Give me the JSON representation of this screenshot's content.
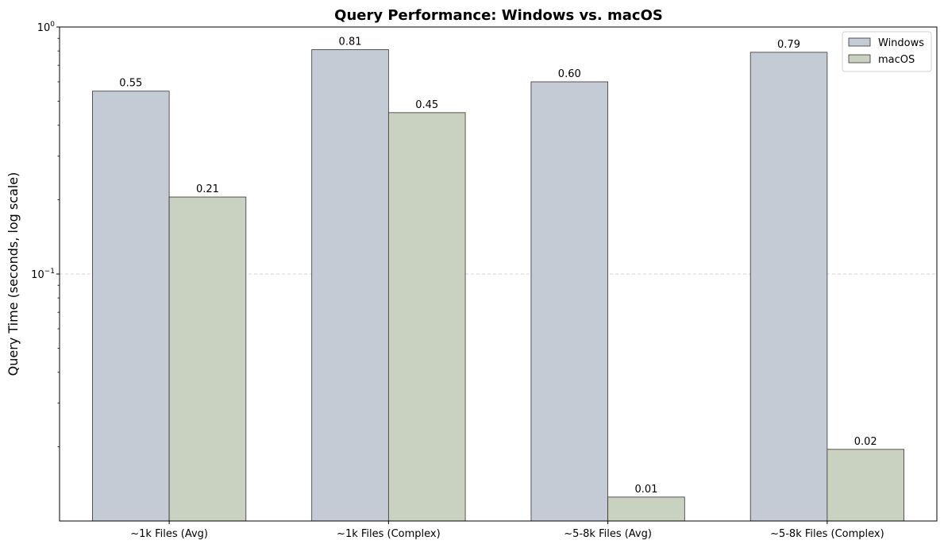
{
  "chart_data": {
    "type": "bar",
    "title": "Query Performance: Windows vs. macOS",
    "xlabel": "",
    "ylabel": "Query Time (seconds, log scale)",
    "yscale": "log",
    "ylim": [
      0.01,
      1
    ],
    "yticks": [
      {
        "value": 1,
        "base": "10",
        "exp": "0"
      },
      {
        "value": 0.1,
        "base": "10",
        "exp": "−1"
      }
    ],
    "grid": "y-major, dashed",
    "legend_position": "top-right",
    "categories": [
      "~1k Files (Avg)",
      "~1k Files (Complex)",
      "~5-8k Files (Avg)",
      "~5-8k Files (Complex)"
    ],
    "series": [
      {
        "name": "Windows",
        "color": "#c4cbd4",
        "values": [
          0.55,
          0.81,
          0.6,
          0.79
        ],
        "labels": [
          "0.55",
          "0.81",
          "0.60",
          "0.79"
        ]
      },
      {
        "name": "macOS",
        "color": "#c9d2c0",
        "values": [
          0.205,
          0.45,
          0.0125,
          0.0195
        ],
        "labels": [
          "0.21",
          "0.45",
          "0.01",
          "0.02"
        ]
      }
    ]
  }
}
